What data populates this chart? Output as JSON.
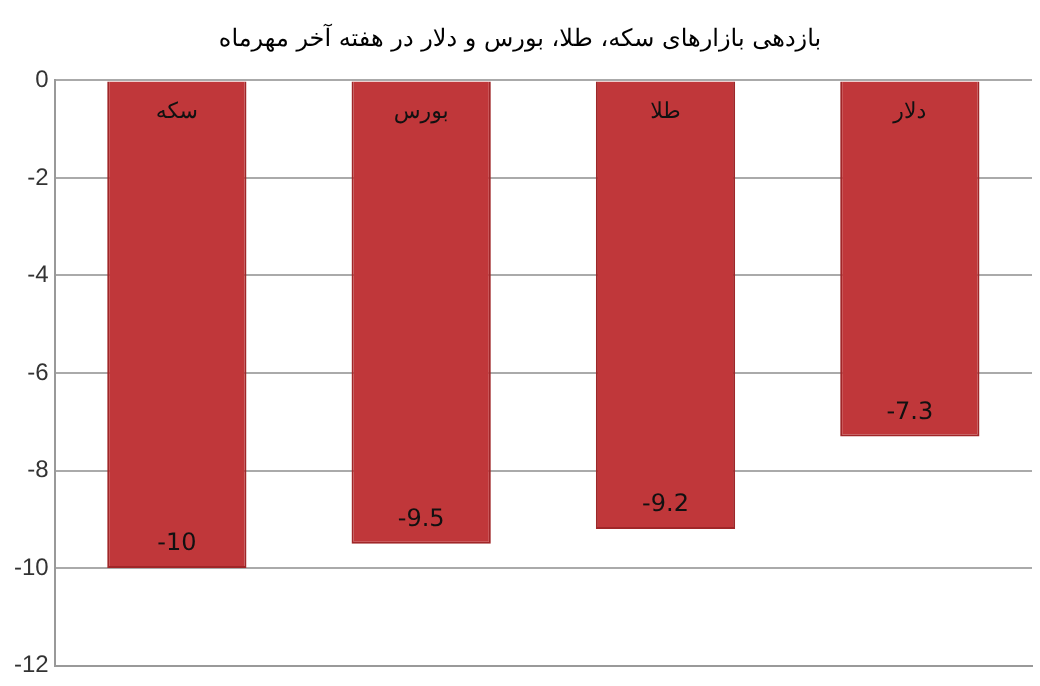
{
  "chart_data": {
    "type": "bar",
    "subtitle": "بازدهی بازارهای سکه، طلا، بورس و دلار در هفته آخر مهرماه",
    "categories": [
      "سکه",
      "بورس",
      "طلا",
      "دلار"
    ],
    "values": [
      -10,
      -9.5,
      -9.2,
      -7.3
    ],
    "color": "#c0373a",
    "ylim": [
      -12,
      0
    ],
    "yticks": [
      0,
      -2,
      -4,
      -6,
      -8,
      -10,
      -12
    ],
    "grid": "y",
    "data_labels": true
  }
}
